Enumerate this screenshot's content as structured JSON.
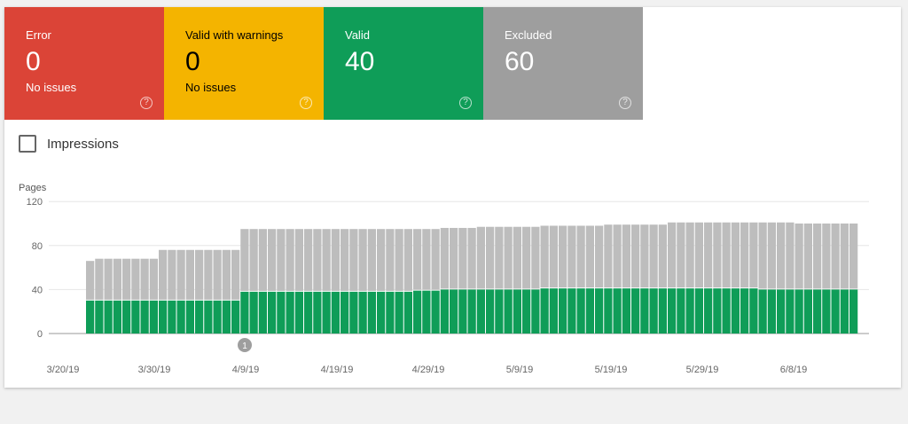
{
  "cards": [
    {
      "label": "Error",
      "count": "0",
      "sub": "No issues",
      "color": "#db4437",
      "text": "#ffffff"
    },
    {
      "label": "Valid with warnings",
      "count": "0",
      "sub": "No issues",
      "color": "#f4b400",
      "text": "#000000"
    },
    {
      "label": "Valid",
      "count": "40",
      "sub": "",
      "color": "#0f9d58",
      "text": "#ffffff"
    },
    {
      "label": "Excluded",
      "count": "60",
      "sub": "",
      "color": "#9e9e9e",
      "text": "#ffffff"
    }
  ],
  "impressions": {
    "label": "Impressions",
    "checked": false
  },
  "chart_data": {
    "type": "bar",
    "stacked": true,
    "ylabel": "Pages",
    "ylim": [
      0,
      120
    ],
    "yticks": [
      "0",
      "40",
      "80",
      "120"
    ],
    "xtick_labels": [
      "3/20/19",
      "3/30/19",
      "4/9/19",
      "4/19/19",
      "4/29/19",
      "5/9/19",
      "5/19/19",
      "5/29/19",
      "6/8/19"
    ],
    "x_start": "3/23/19",
    "x_end": "6/15/19",
    "annotation": {
      "label": "1",
      "date": "4/9/19"
    },
    "series": [
      {
        "color": "#0f9d58",
        "values": [
          30,
          30,
          30,
          30,
          30,
          30,
          30,
          30,
          30,
          30,
          30,
          30,
          30,
          30,
          30,
          30,
          30,
          38,
          38,
          38,
          38,
          38,
          38,
          38,
          38,
          38,
          38,
          38,
          38,
          38,
          38,
          38,
          38,
          38,
          38,
          38,
          39,
          39,
          39,
          40,
          40,
          40,
          40,
          40,
          40,
          40,
          40,
          40,
          40,
          40,
          41,
          41,
          41,
          41,
          41,
          41,
          41,
          41,
          41,
          41,
          41,
          41,
          41,
          41,
          41,
          41,
          41,
          41,
          41,
          41,
          41,
          41,
          41,
          41,
          40,
          40,
          40,
          40,
          40,
          40,
          40,
          40,
          40,
          40,
          40
        ]
      },
      {
        "color": "#bdbdbd",
        "values": [
          36,
          38,
          38,
          38,
          38,
          38,
          38,
          38,
          46,
          46,
          46,
          46,
          46,
          46,
          46,
          46,
          46,
          57,
          57,
          57,
          57,
          57,
          57,
          57,
          57,
          57,
          57,
          57,
          57,
          57,
          57,
          57,
          57,
          57,
          57,
          57,
          56,
          56,
          56,
          56,
          56,
          56,
          56,
          57,
          57,
          57,
          57,
          57,
          57,
          57,
          57,
          57,
          57,
          57,
          57,
          57,
          57,
          58,
          58,
          58,
          58,
          58,
          58,
          58,
          60,
          60,
          60,
          60,
          60,
          60,
          60,
          60,
          60,
          60,
          61,
          61,
          61,
          61,
          60,
          60,
          60,
          60,
          60,
          60,
          60
        ]
      }
    ]
  }
}
